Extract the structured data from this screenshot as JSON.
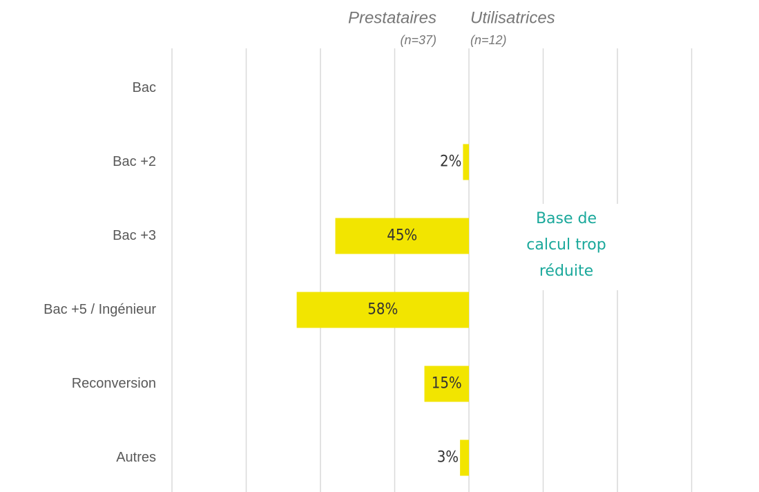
{
  "chart_data": {
    "type": "butterfly",
    "categories": [
      "Bac",
      "Bac +2",
      "Bac +3",
      "Bac +5 / Ingénieur",
      "Reconversion",
      "Autres"
    ],
    "series": [
      {
        "name": "Prestataires",
        "n_label": "(n=37)",
        "side": "left",
        "color": "#f2e500",
        "values": [
          null,
          2,
          45,
          58,
          15,
          3
        ],
        "value_labels": [
          null,
          "2%",
          "45%",
          "58%",
          "15%",
          "3%"
        ]
      },
      {
        "name": "Utilisatrices",
        "n_label": "(n=12)",
        "side": "right",
        "color": "#f2e500",
        "values": [
          null,
          null,
          null,
          null,
          null,
          null
        ]
      }
    ],
    "left_xlim": [
      0,
      100
    ],
    "left_xticks": [
      0,
      25,
      50,
      75,
      100
    ],
    "right_xlim": [
      0,
      75
    ],
    "right_xticks": [
      25,
      50,
      75
    ],
    "annotation": [
      "Base de",
      "calcul trop",
      "réduite"
    ],
    "grid": true
  }
}
